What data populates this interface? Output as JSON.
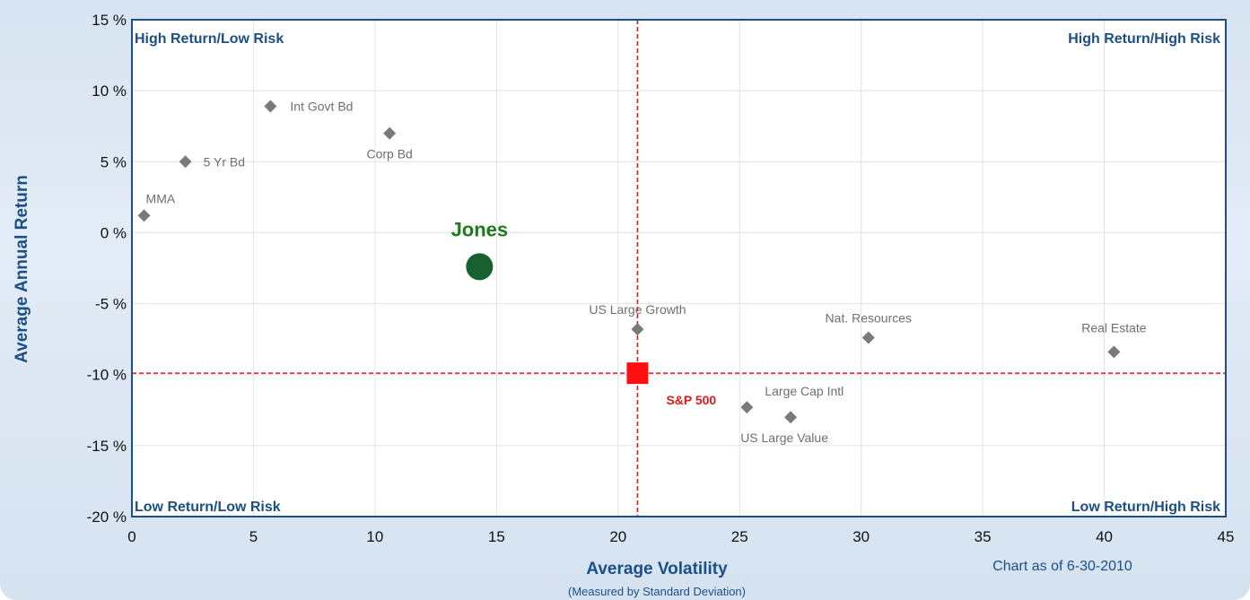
{
  "chart_data": {
    "type": "scatter",
    "xlabel": "Average Volatility",
    "xlabel_sub": "(Measured by Standard Deviation)",
    "ylabel": "Average Annual Return",
    "note": "Chart as of 6-30-2010",
    "xlim": [
      0,
      45
    ],
    "ylim": [
      -20,
      15
    ],
    "x_ticks": [
      {
        "value": 0,
        "label": "0"
      },
      {
        "value": 5,
        "label": "5"
      },
      {
        "value": 10,
        "label": "10"
      },
      {
        "value": 15,
        "label": "15"
      },
      {
        "value": 20,
        "label": "20"
      },
      {
        "value": 25,
        "label": "25"
      },
      {
        "value": 30,
        "label": "30"
      },
      {
        "value": 35,
        "label": "35"
      },
      {
        "value": 40,
        "label": "40"
      },
      {
        "value": 45,
        "label": "45"
      }
    ],
    "y_ticks": [
      {
        "value": 15,
        "label": "15 %"
      },
      {
        "value": 10,
        "label": "10 %"
      },
      {
        "value": 5,
        "label": "5 %"
      },
      {
        "value": 0,
        "label": "0 %"
      },
      {
        "value": -5,
        "label": "-5 %"
      },
      {
        "value": -10,
        "label": "-10 %"
      },
      {
        "value": -15,
        "label": "-15 %"
      },
      {
        "value": -20,
        "label": "-20 %"
      }
    ],
    "grid": true,
    "quadrants": {
      "top_left": "High Return/Low Risk",
      "top_right": "High Return/High Risk",
      "bottom_left": "Low Return/Low Risk",
      "bottom_right": "Low Return/High Risk"
    },
    "benchmark_lines": {
      "x": 20.8,
      "y": -9.9,
      "color": "#e01818"
    },
    "points": [
      {
        "label": "MMA",
        "x": 0.5,
        "y": 1.2
      },
      {
        "label": "5 Yr Bd",
        "x": 2.2,
        "y": 5.0
      },
      {
        "label": "Int Govt Bd",
        "x": 5.7,
        "y": 8.9
      },
      {
        "label": "Corp Bd",
        "x": 10.6,
        "y": 7.0
      },
      {
        "label": "US Large Growth",
        "x": 20.8,
        "y": -6.8
      },
      {
        "label": "Nat. Resources",
        "x": 30.3,
        "y": -7.4
      },
      {
        "label": "Real Estate",
        "x": 40.4,
        "y": -8.4
      },
      {
        "label": "Large Cap Intl",
        "x": 25.3,
        "y": -12.3
      },
      {
        "label": "US Large Value",
        "x": 27.1,
        "y": -13.0
      }
    ],
    "highlight": {
      "label": "Jones",
      "x": 14.3,
      "y": -2.4,
      "color": "#17602f",
      "label_color": "#1f7a1f"
    },
    "benchmark": {
      "label": "S&P 500",
      "x": 20.8,
      "y": -9.9,
      "color": "#ff1010"
    }
  }
}
